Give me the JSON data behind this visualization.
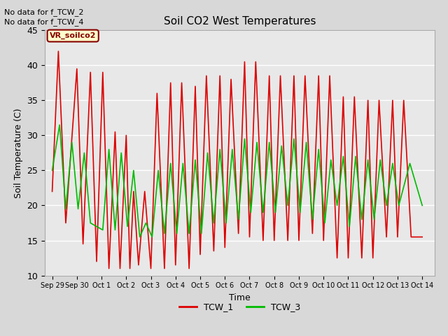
{
  "title": "Soil CO2 West Temperatures",
  "xlabel": "Time",
  "ylabel": "Soil Temperature (C)",
  "ylim": [
    10,
    45
  ],
  "xlim_days": [
    -0.3,
    15.5
  ],
  "background_color": "#d8d8d8",
  "plot_bg_color": "#e8e8e8",
  "grid_color": "white",
  "annotations": [
    "No data for f_TCW_2",
    "No data for f_TCW_4"
  ],
  "label_box_text": "VR_soilco2",
  "label_box_color": "#ffffcc",
  "label_box_edge": "#880000",
  "tick_labels": [
    "Sep 29",
    "Sep 30",
    "Oct 1",
    "Oct 2",
    "Oct 3",
    "Oct 4",
    "Oct 5",
    "Oct 6",
    "Oct 7",
    "Oct 8",
    "Oct 9",
    "Oct 10",
    "Oct 11",
    "Oct 12",
    "Oct 13",
    "Oct 14"
  ],
  "tick_positions": [
    0,
    1,
    2,
    3,
    4,
    5,
    6,
    7,
    8,
    9,
    10,
    11,
    12,
    13,
    14,
    15
  ],
  "yticks": [
    10,
    15,
    20,
    25,
    30,
    35,
    40,
    45
  ],
  "TCW_1_color": "#dd0000",
  "TCW_1_label": "TCW_1",
  "TCW_1_x": [
    0.0,
    0.25,
    0.55,
    1.0,
    1.25,
    1.55,
    1.8,
    2.05,
    2.3,
    2.55,
    2.75,
    3.0,
    3.15,
    3.3,
    3.5,
    3.75,
    4.0,
    4.25,
    4.55,
    4.8,
    5.0,
    5.25,
    5.55,
    5.8,
    6.0,
    6.25,
    6.55,
    6.8,
    7.0,
    7.25,
    7.55,
    7.8,
    8.0,
    8.25,
    8.55,
    8.8,
    9.0,
    9.25,
    9.55,
    9.8,
    10.0,
    10.25,
    10.55,
    10.8,
    11.0,
    11.25,
    11.55,
    11.8,
    12.0,
    12.25,
    12.55,
    12.8,
    13.0,
    13.25,
    13.55,
    13.8,
    14.0,
    14.25,
    14.55,
    15.0
  ],
  "TCW_1_y": [
    22,
    42,
    17.5,
    39.5,
    14.5,
    39,
    12,
    39,
    11,
    30.5,
    11,
    30,
    11,
    22,
    11.5,
    22,
    11,
    36,
    11,
    37.5,
    11.5,
    37.5,
    11,
    37,
    13,
    38.5,
    13.5,
    38.5,
    14,
    38,
    16,
    40.5,
    15.5,
    40.5,
    15,
    38.5,
    15,
    38.5,
    15,
    38.5,
    15,
    38.5,
    16,
    38.5,
    15,
    38.5,
    12.5,
    35.5,
    12.5,
    35.5,
    12.5,
    35,
    12.5,
    35,
    15.5,
    35,
    15.5,
    35,
    15.5,
    15.5
  ],
  "TCW_3_color": "#00bb00",
  "TCW_3_label": "TCW_3",
  "TCW_3_x": [
    0.0,
    0.3,
    0.55,
    0.8,
    1.05,
    1.3,
    1.55,
    1.8,
    2.05,
    2.3,
    2.55,
    2.8,
    3.05,
    3.3,
    3.55,
    3.8,
    4.05,
    4.3,
    4.55,
    4.8,
    5.05,
    5.3,
    5.55,
    5.8,
    6.05,
    6.3,
    6.55,
    6.8,
    7.05,
    7.3,
    7.55,
    7.8,
    8.05,
    8.3,
    8.55,
    8.8,
    9.05,
    9.3,
    9.55,
    9.8,
    10.05,
    10.3,
    10.55,
    10.8,
    11.05,
    11.3,
    11.55,
    11.8,
    12.05,
    12.3,
    12.55,
    12.8,
    13.05,
    13.3,
    13.55,
    13.8,
    14.05,
    14.5,
    15.0
  ],
  "TCW_3_y": [
    25,
    31.5,
    19.5,
    29,
    19.5,
    27.5,
    17.5,
    17,
    16.5,
    28,
    16.5,
    27.5,
    17,
    25,
    15.5,
    17.5,
    15.5,
    25,
    16,
    26,
    16,
    26,
    16,
    26.5,
    16,
    27.5,
    17.5,
    28,
    17.5,
    28,
    18,
    29.5,
    19,
    29,
    19,
    29,
    19,
    28.5,
    20,
    29.5,
    19,
    29,
    18,
    28,
    17.5,
    26.5,
    20,
    27,
    17,
    27,
    18,
    26.5,
    18,
    26.5,
    20,
    26,
    20,
    26,
    20
  ]
}
